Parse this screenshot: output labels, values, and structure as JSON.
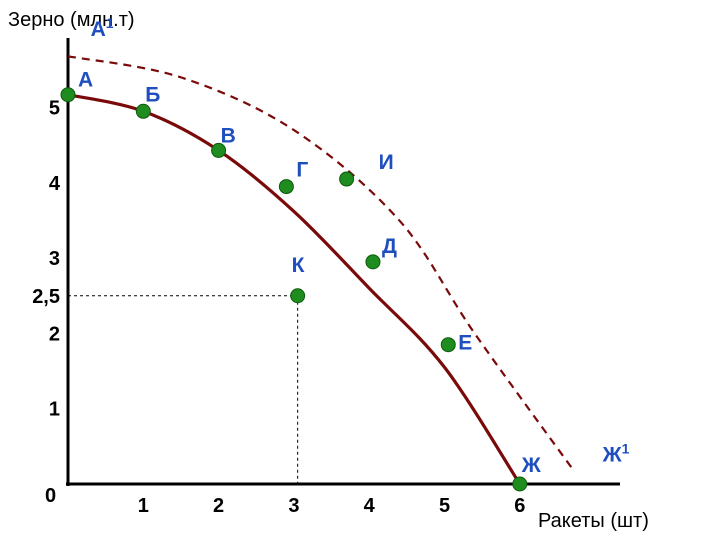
{
  "chart_data": {
    "type": "line",
    "ylabel": "Зерно (млн.т)",
    "xlabel": "Ракеты (шт)",
    "origin_label": "0",
    "xlim": [
      0,
      7.2
    ],
    "ylim": [
      0,
      5.8
    ],
    "x_ticks": [
      {
        "value": 1,
        "label": "1"
      },
      {
        "value": 2,
        "label": "2"
      },
      {
        "value": 3,
        "label": "3"
      },
      {
        "value": 4,
        "label": "4"
      },
      {
        "value": 5,
        "label": "5"
      },
      {
        "value": 6,
        "label": "6"
      }
    ],
    "y_ticks": [
      {
        "value": 1,
        "label": "1"
      },
      {
        "value": 2,
        "label": "2"
      },
      {
        "value": 2.5,
        "label": "2,5"
      },
      {
        "value": 3,
        "label": "3"
      },
      {
        "value": 4,
        "label": "4"
      },
      {
        "value": 5,
        "label": "5"
      }
    ],
    "colors": {
      "curve": "#7a0a0a",
      "point": "#1e8c1e",
      "label": "#1f4fbf",
      "axis": "#000000"
    },
    "curve_solid": {
      "style": "solid",
      "points": [
        [
          0,
          5.17
        ],
        [
          1,
          4.95
        ],
        [
          2,
          4.43
        ],
        [
          3,
          3.62
        ],
        [
          4,
          2.6
        ],
        [
          5,
          1.55
        ],
        [
          6,
          0
        ]
      ]
    },
    "curve_dashed": {
      "style": "dashed",
      "points": [
        [
          0,
          5.68
        ],
        [
          1.5,
          5.4
        ],
        [
          3,
          4.7
        ],
        [
          4.4,
          3.5
        ],
        [
          5.4,
          2.0
        ],
        [
          6.7,
          0.2
        ]
      ]
    },
    "points": [
      {
        "name": "А",
        "x": 0,
        "y": 5.17,
        "label_dx": 10,
        "label_dy": -8
      },
      {
        "name": "Б",
        "x": 1,
        "y": 4.95,
        "label_dx": 2,
        "label_dy": -10
      },
      {
        "name": "В",
        "x": 2,
        "y": 4.43,
        "label_dx": 2,
        "label_dy": -8
      },
      {
        "name": "Г",
        "x": 2.9,
        "y": 3.95,
        "label_dx": 10,
        "label_dy": -10
      },
      {
        "name": "И",
        "x": 3.7,
        "y": 4.05,
        "label_dx": 32,
        "label_dy": -10
      },
      {
        "name": "Д",
        "x": 4.05,
        "y": 2.95,
        "label_dx": 9,
        "label_dy": -9
      },
      {
        "name": "К",
        "x": 3.05,
        "y": 2.5,
        "label_dx": -6,
        "label_dy": -24
      },
      {
        "name": "Е",
        "x": 5.05,
        "y": 1.85,
        "label_dx": 10,
        "label_dy": 5
      },
      {
        "name": "Ж",
        "x": 6,
        "y": 0,
        "label_dx": 2,
        "label_dy": -12
      }
    ],
    "free_labels": [
      {
        "name": "А",
        "sup": "1",
        "x": 0.3,
        "y": 5.95
      },
      {
        "name": "Ж",
        "sup": "1",
        "x": 7.1,
        "y": 0.3
      }
    ],
    "guide": {
      "x": 3.05,
      "y": 2.5,
      "style": "dotted"
    }
  }
}
